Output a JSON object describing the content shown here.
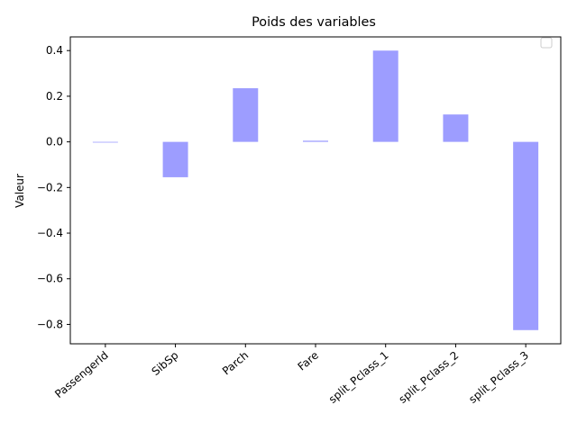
{
  "chart_data": {
    "type": "bar",
    "title": "Poids des variables",
    "xlabel": "",
    "ylabel": "Valeur",
    "categories": [
      "PassengerId",
      "SibSp",
      "Parch",
      "Fare",
      "split_Pclass_1",
      "split_Pclass_2",
      "split_Pclass_3"
    ],
    "values": [
      0.0,
      -0.155,
      0.235,
      0.005,
      0.4,
      0.12,
      -0.825
    ],
    "ylim": [
      -0.885,
      0.46
    ],
    "yticks": [
      "0.4",
      "0.2",
      "0.0",
      "−0.2",
      "−0.4",
      "−0.6",
      "−0.8"
    ],
    "ytick_values": [
      0.4,
      0.2,
      0.0,
      -0.2,
      -0.4,
      -0.6,
      -0.8
    ],
    "bar_color": "#9d9dff",
    "grid": false,
    "legend": "top-right (empty)"
  }
}
